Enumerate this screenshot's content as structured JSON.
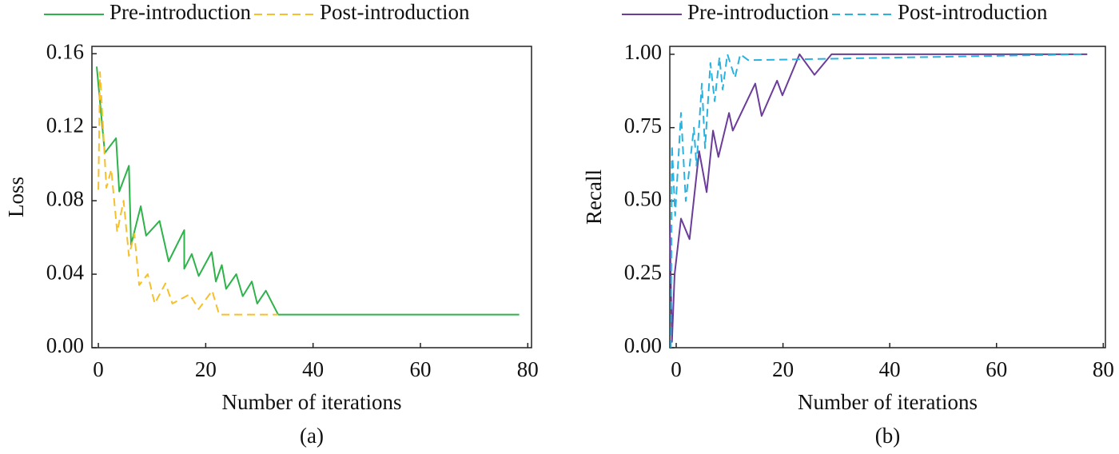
{
  "chart_data": [
    {
      "type": "line",
      "x_label": "Number of iterations",
      "y_label": "Loss",
      "caption": "(a)",
      "xlim": [
        -1.2,
        80.7
      ],
      "xticks": [
        0,
        20,
        40,
        60,
        80
      ],
      "ylim": [
        0,
        0.164
      ],
      "yticks": [
        {
          "value": 0,
          "label": "0.00"
        },
        {
          "value": 0.04,
          "label": "0.04"
        },
        {
          "value": 0.08,
          "label": "0.08"
        },
        {
          "value": 0.12,
          "label": "0.12"
        },
        {
          "value": 0.16,
          "label": "0.16"
        }
      ],
      "legend": "top",
      "series": [
        {
          "name": "Pre-introduction",
          "color": "#2db34a",
          "line_style": "solid",
          "x": [
            -0.3,
            1.2,
            3.3,
            3.9,
            5.7,
            6.1,
            7.9,
            8.9,
            11.4,
            13.1,
            16,
            16,
            17.4,
            18.7,
            21.1,
            21.9,
            23,
            23.8,
            25.7,
            26.9,
            28.6,
            29.6,
            31.2,
            33.5,
            78.4
          ],
          "values": [
            0.153,
            0.106,
            0.114,
            0.085,
            0.099,
            0.056,
            0.077,
            0.061,
            0.069,
            0.047,
            0.064,
            0.043,
            0.051,
            0.039,
            0.052,
            0.036,
            0.045,
            0.032,
            0.04,
            0.028,
            0.036,
            0.024,
            0.031,
            0.018,
            0.018
          ]
        },
        {
          "name": "Post-introduction",
          "color": "#f5c02a",
          "line_style": "dashed",
          "x": [
            0,
            0.3,
            1.5,
            2.4,
            3.5,
            4.7,
            5.7,
            6.7,
            7.6,
            9.2,
            10.5,
            12.5,
            13.8,
            17,
            18.7,
            21.2,
            22.5,
            33.5
          ],
          "values": [
            0.086,
            0.15,
            0.087,
            0.097,
            0.063,
            0.08,
            0.05,
            0.062,
            0.034,
            0.04,
            0.024,
            0.035,
            0.024,
            0.029,
            0.021,
            0.031,
            0.018,
            0.018
          ]
        }
      ]
    },
    {
      "type": "line",
      "x_label": "Number of iterations",
      "y_label": "Recall",
      "caption": "(b)",
      "xlim": [
        -1.2,
        80.4
      ],
      "xticks": [
        0,
        20,
        40,
        60,
        80
      ],
      "ylim": [
        0,
        1.027
      ],
      "yticks": [
        {
          "value": 0,
          "label": "0.00"
        },
        {
          "value": 0.25,
          "label": "0.25"
        },
        {
          "value": 0.5,
          "label": "0.50"
        },
        {
          "value": 0.75,
          "label": "0.75"
        },
        {
          "value": 1,
          "label": "1.00"
        }
      ],
      "legend": "top",
      "series": [
        {
          "name": "Pre-introduction",
          "color": "#6b3c9a",
          "line_style": "solid",
          "x": [
            -1.2,
            -0.8,
            -0.3,
            0.9,
            2.5,
            4.3,
            5.7,
            6.9,
            7.9,
            9.9,
            10.6,
            14.8,
            16,
            18.9,
            19.9,
            23.1,
            25.9,
            29.1,
            77
          ],
          "values": [
            0.42,
            0.02,
            0.25,
            0.44,
            0.37,
            0.67,
            0.53,
            0.74,
            0.65,
            0.8,
            0.74,
            0.9,
            0.79,
            0.91,
            0.86,
            1,
            0.93,
            1,
            1
          ]
        },
        {
          "name": "Post-introduction",
          "color": "#29b2e0",
          "line_style": "dashed",
          "x": [
            -1,
            -0.8,
            -0.2,
            0.9,
            1.8,
            3.3,
            3.8,
            4.8,
            5.4,
            6.4,
            7.2,
            8.1,
            8.7,
            9.6,
            11,
            12,
            13.5,
            76.5
          ],
          "values": [
            0,
            0.69,
            0.45,
            0.8,
            0.5,
            0.75,
            0.62,
            0.9,
            0.68,
            0.97,
            0.84,
            0.99,
            0.88,
            1,
            0.92,
            1,
            0.98,
            1
          ]
        }
      ]
    }
  ]
}
